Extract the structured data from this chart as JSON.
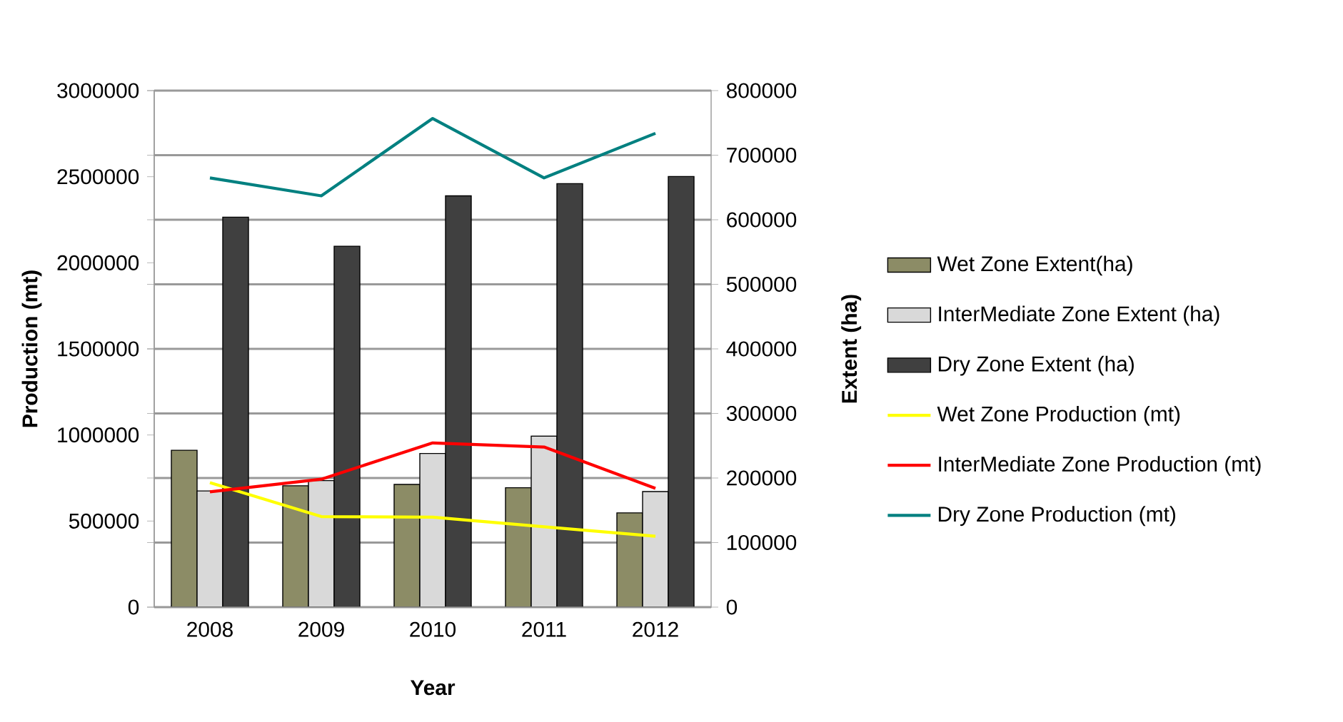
{
  "chart_data": {
    "type": "bar",
    "xlabel": "Year",
    "ylabel": "Production (mt)",
    "y2label": "Extent (ha)",
    "categories": [
      "2008",
      "2009",
      "2010",
      "2011",
      "2012"
    ],
    "series": [
      {
        "name": "Wet Zone Extent(ha)",
        "axis": "y2",
        "color": "#8c8c66",
        "values": [
          243000,
          188000,
          190000,
          185000,
          146000
        ]
      },
      {
        "name": "InterMediate Zone Extent (ha)",
        "axis": "y2",
        "color": "#d9d9d9",
        "values": [
          180000,
          196000,
          238000,
          265000,
          179000
        ]
      },
      {
        "name": "Dry Zone Extent (ha)",
        "axis": "y2",
        "color": "#404040",
        "values": [
          604000,
          559000,
          637000,
          656000,
          667000
        ]
      },
      {
        "name": "Wet Zone Production (mt)",
        "type": "line",
        "color": "#ffff00",
        "values": [
          723000,
          526000,
          523000,
          467000,
          412000
        ]
      },
      {
        "name": "InterMediate Zone Production (mt)",
        "type": "line",
        "color": "#ff0000",
        "values": [
          670000,
          743000,
          954000,
          930000,
          690000
        ]
      },
      {
        "name": "Dry Zone Production (mt)",
        "type": "line",
        "color": "#008080",
        "values": [
          2493000,
          2389000,
          2838000,
          2493000,
          2752000
        ]
      }
    ],
    "ylim": [
      0,
      3000000
    ],
    "yticks": [
      0,
      500000,
      1000000,
      1500000,
      2000000,
      2500000,
      3000000
    ],
    "y2lim": [
      0,
      800000
    ],
    "y2ticks": [
      0,
      100000,
      200000,
      300000,
      400000,
      500000,
      600000,
      700000,
      800000
    ],
    "grid": "y",
    "legend": "right",
    "marker": "none",
    "line_style": "solid"
  }
}
